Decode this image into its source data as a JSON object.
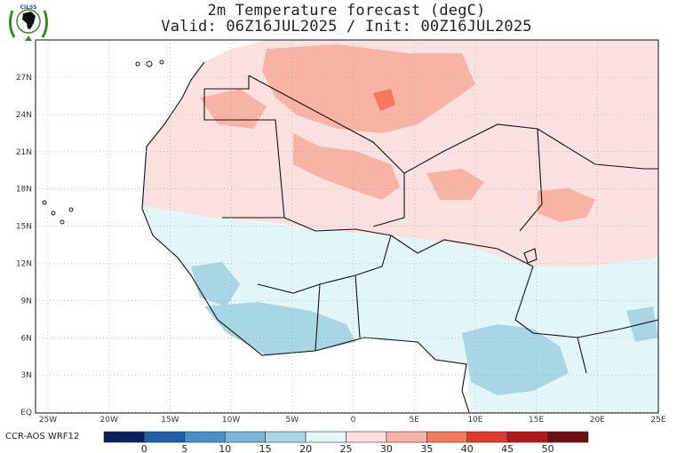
{
  "title_line1": "2m Temperature forecast (degC)",
  "title_line2": "Valid: 06Z16JUL2025 / Init: 00Z16JUL2025",
  "logo": {
    "text": "CILSS",
    "icon": "cilss-africa-logo-icon"
  },
  "map": {
    "x_ticks": [
      "25W",
      "20W",
      "15W",
      "10W",
      "5W",
      "0",
      "5E",
      "10E",
      "15E",
      "20E",
      "25E"
    ],
    "y_ticks": [
      "27N",
      "24N",
      "21N",
      "18N",
      "15N",
      "12N",
      "9N",
      "6N",
      "3N",
      "EQ"
    ],
    "lon_range": [
      -25,
      25
    ],
    "lat_range": [
      0,
      29
    ],
    "grid": true
  },
  "model_label": "CCR-AOS WRF12",
  "colorbar": {
    "labels": [
      "0",
      "5",
      "10",
      "15",
      "20",
      "25",
      "30",
      "35",
      "40",
      "45",
      "50"
    ],
    "colors": [
      "#0b1f5c",
      "#1f5fa8",
      "#4a8fc9",
      "#79b6da",
      "#a8d6e4",
      "#e2f5f7",
      "#fbe0e0",
      "#f8b3a4",
      "#f37a5c",
      "#e03a2a",
      "#b1191b",
      "#6e0e0e"
    ]
  }
}
